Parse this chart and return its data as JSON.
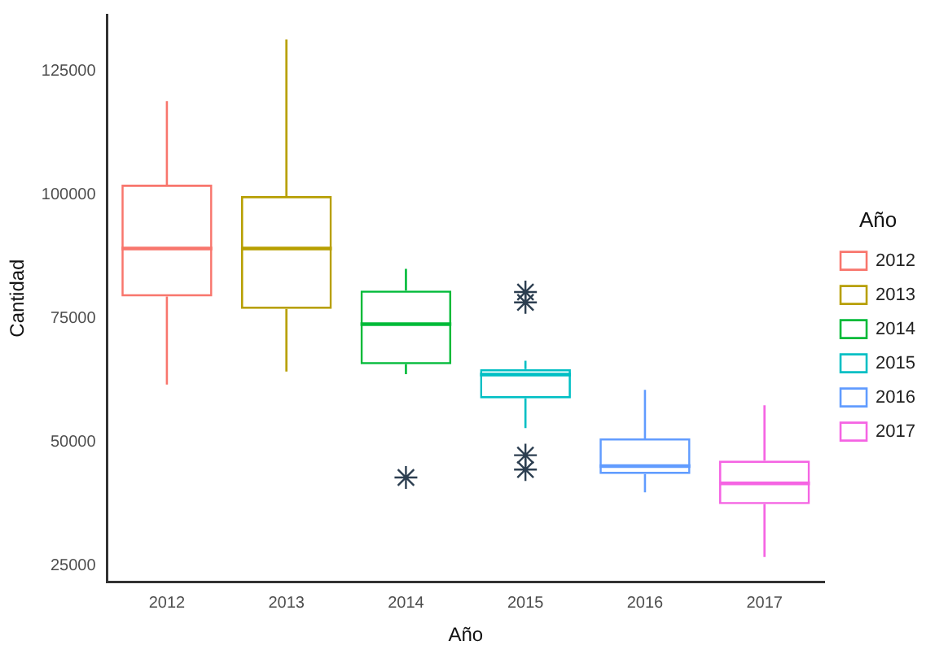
{
  "chart_data": {
    "type": "box",
    "xlabel": "Año",
    "ylabel": "Cantidad",
    "legend_title": "Año",
    "categories": [
      "2012",
      "2013",
      "2014",
      "2015",
      "2016",
      "2017"
    ],
    "series": [
      {
        "name": "2012",
        "color": "#f8766d",
        "boxes": [
          {
            "low": 61700,
            "q1": 79500,
            "median": 89200,
            "q3": 102100,
            "high": 119000
          },
          null,
          null,
          null,
          null,
          null
        ]
      },
      {
        "name": "2013",
        "color": "#b79f00",
        "boxes": [
          null,
          {
            "low": 64300,
            "q1": 77000,
            "median": 89200,
            "q3": 99800,
            "high": 131500
          },
          null,
          null,
          null,
          null
        ]
      },
      {
        "name": "2014",
        "color": "#00ba38",
        "boxes": [
          null,
          null,
          {
            "low": 63800,
            "q1": 65800,
            "median": 73900,
            "q3": 80700,
            "high": 85100,
            "outliers": [
              42900
            ]
          },
          null,
          null,
          null
        ]
      },
      {
        "name": "2015",
        "color": "#00bfc4",
        "boxes": [
          null,
          null,
          null,
          {
            "low": 52900,
            "q1": 58900,
            "median": 63700,
            "q3": 64800,
            "high": 66500,
            "outliers": [
              80400,
              78300,
              47400,
              44500
            ]
          },
          null,
          null
        ]
      },
      {
        "name": "2016",
        "color": "#619cff",
        "boxes": [
          null,
          null,
          null,
          null,
          {
            "low": 39900,
            "q1": 43600,
            "median": 45200,
            "q3": 50800,
            "high": 60600
          },
          null
        ]
      },
      {
        "name": "2017",
        "color": "#f564e3",
        "boxes": [
          null,
          null,
          null,
          null,
          null,
          {
            "low": 26800,
            "q1": 37500,
            "median": 41700,
            "q3": 46300,
            "high": 57500
          }
        ]
      }
    ],
    "ylim": [
      21800,
      136500
    ],
    "yticks": [
      25000,
      50000,
      75000,
      100000,
      125000
    ],
    "grid": false,
    "legend": "right",
    "marker": "star"
  }
}
